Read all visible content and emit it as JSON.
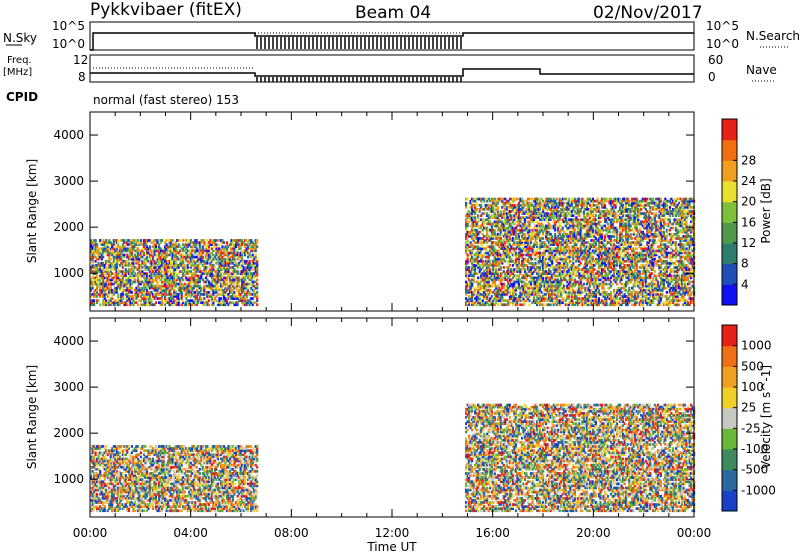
{
  "header": {
    "station": "Pykkvibaer (fitEX)",
    "beam": "Beam 04",
    "date": "02/Nov/2017"
  },
  "status_panels": {
    "nsky_label": "N.Sky",
    "nsky_ticks": [
      "10^5",
      "10^0"
    ],
    "nsearch_label": "N.Search",
    "nsearch_ticks": [
      "10^5",
      "10^0"
    ],
    "freq_label": "Freq.",
    "freq_unit": "[MHz]",
    "freq_ticks": [
      "12",
      "8"
    ],
    "nave_label": "Nave",
    "nave_ticks": [
      "60",
      "0"
    ],
    "cpid_label": "CPID",
    "cpid_text": "normal (fast stereo) 153"
  },
  "chart_data": [
    {
      "type": "heatmap",
      "name": "power",
      "xlabel": "",
      "ylabel": "Slant Range [km]",
      "yticks": [
        1000,
        2000,
        3000,
        4000
      ],
      "ylim": [
        180,
        4500
      ],
      "xlim_hours": [
        0,
        24
      ],
      "colorbar": {
        "label": "Power [dB]",
        "ticks": [
          "4",
          "8",
          "12",
          "16",
          "20",
          "24",
          "28"
        ],
        "colors": [
          "#1010f0",
          "#1f4fb8",
          "#2e7d6e",
          "#4f9a4a",
          "#7fc03a",
          "#e8e030",
          "#f0a020",
          "#f07010",
          "#e82018"
        ]
      },
      "regions": [
        {
          "t": [
            0.0,
            6.6
          ],
          "range_km": [
            300,
            1700
          ]
        },
        {
          "t": [
            14.9,
            24.0
          ],
          "range_km": [
            300,
            2600
          ]
        }
      ]
    },
    {
      "type": "heatmap",
      "name": "velocity",
      "xlabel": "Time UT",
      "ylabel": "Slant Range [km]",
      "yticks": [
        1000,
        2000,
        3000,
        4000
      ],
      "ylim": [
        180,
        4500
      ],
      "xticks": [
        "00:00",
        "04:00",
        "08:00",
        "12:00",
        "16:00",
        "20:00",
        "00:00"
      ],
      "xlim_hours": [
        0,
        24
      ],
      "colorbar": {
        "label": "Velocity [m s^-1]",
        "ticks": [
          "1000",
          "500",
          "100",
          "25",
          "-25",
          "-100",
          "-500",
          "-1000"
        ],
        "colors": [
          "#1840c8",
          "#2a6aa0",
          "#3f8a5e",
          "#6ab83a",
          "#c8c8c0",
          "#f0d028",
          "#f0a020",
          "#f07018",
          "#e82018"
        ]
      },
      "regions": [
        {
          "t": [
            0.0,
            6.6
          ],
          "range_km": [
            300,
            1700
          ]
        },
        {
          "t": [
            14.9,
            24.0
          ],
          "range_km": [
            300,
            2600
          ]
        }
      ]
    }
  ]
}
